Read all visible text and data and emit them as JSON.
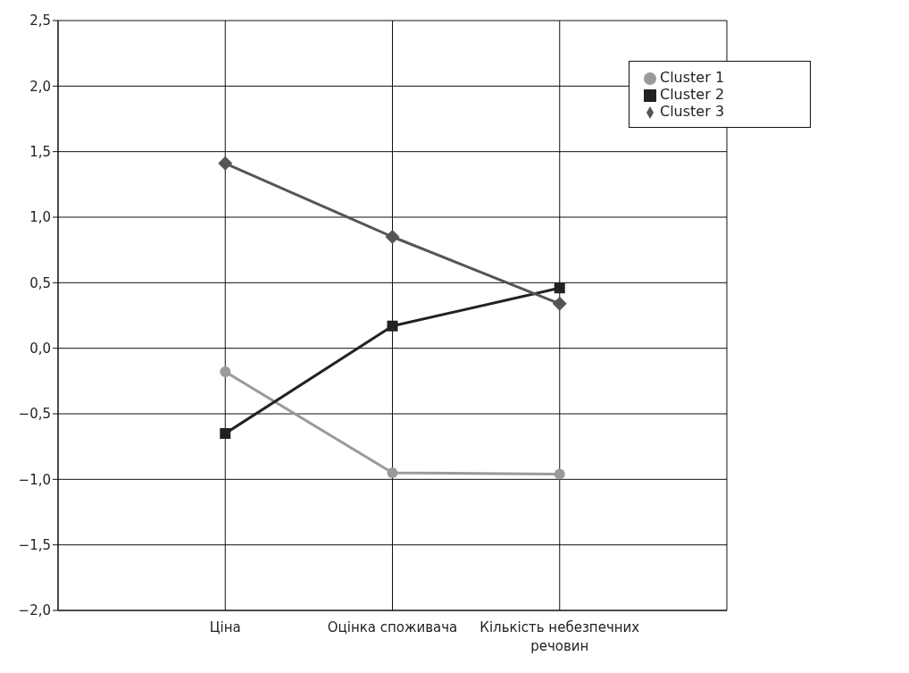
{
  "chart_data": {
    "type": "line",
    "categories": [
      "Ціна",
      "Оцінка споживача",
      "Кількість небезпечних речовин"
    ],
    "series": [
      {
        "name": "Cluster  1",
        "color": "#9a9a9a",
        "marker": "circle",
        "values": [
          -0.18,
          -0.95,
          -0.96
        ]
      },
      {
        "name": "Cluster  2",
        "color": "#222222",
        "marker": "square",
        "values": [
          -0.65,
          0.17,
          0.46
        ]
      },
      {
        "name": "Cluster  3",
        "color": "#555555",
        "marker": "diamond",
        "values": [
          1.41,
          0.85,
          0.34
        ]
      }
    ],
    "ylim": [
      -2,
      2.5
    ],
    "yticks": [
      {
        "value": -2,
        "label": "−2,0"
      },
      {
        "value": -1.5,
        "label": "−1,5"
      },
      {
        "value": -1,
        "label": "−1,0"
      },
      {
        "value": -0.5,
        "label": "−0,5"
      },
      {
        "value": 0,
        "label": "0,0"
      },
      {
        "value": 0.5,
        "label": "0,5"
      },
      {
        "value": 1,
        "label": "1,0"
      },
      {
        "value": 1.5,
        "label": "1,5"
      },
      {
        "value": 2,
        "label": "2,0"
      },
      {
        "value": 2.5,
        "label": "2,5"
      }
    ],
    "grid": true,
    "legend": "top right",
    "line_style": "solid"
  }
}
